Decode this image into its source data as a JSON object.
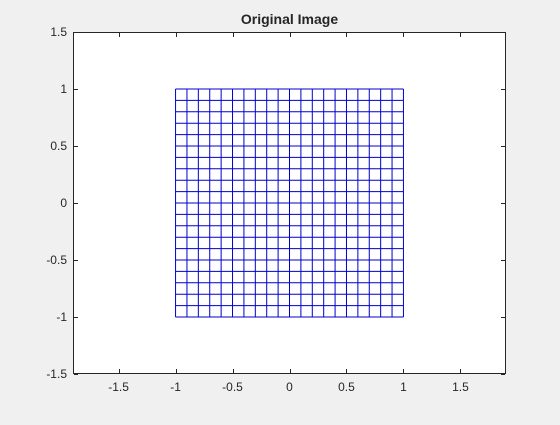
{
  "chart_data": {
    "type": "line",
    "title": "Original Image",
    "xlabel": "",
    "ylabel": "",
    "xlim": [
      -1.9,
      1.9
    ],
    "ylim": [
      -1.5,
      1.5
    ],
    "xticks": [
      -1.5,
      -1,
      -0.5,
      0,
      0.5,
      1,
      1.5
    ],
    "xtick_labels": [
      "-1.5",
      "-1",
      "-0.5",
      "0",
      "0.5",
      "1",
      "1.5"
    ],
    "yticks": [
      -1.5,
      -1,
      -0.5,
      0,
      0.5,
      1,
      1.5
    ],
    "ytick_labels": [
      "-1.5",
      "-1",
      "-0.5",
      "0",
      "0.5",
      "1",
      "1.5"
    ],
    "grid": false,
    "legend": "none",
    "series": [
      {
        "description": "uniform mesh grid over the square [-1,1] x [-1,1]",
        "x_range": [
          -1,
          1
        ],
        "y_range": [
          -1,
          1
        ],
        "divisions_x": 20,
        "divisions_y": 20,
        "color": "#0000cc"
      }
    ]
  },
  "colors": {
    "figure_background": "#f0f0f0",
    "axes_background": "#ffffff",
    "axis": "#262626",
    "grid_lines": "#0000cc"
  }
}
